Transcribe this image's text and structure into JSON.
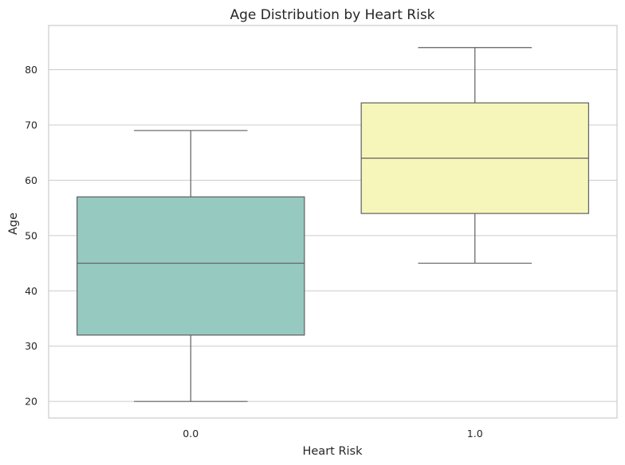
{
  "chart_data": {
    "type": "box",
    "title": "Age Distribution by Heart Risk",
    "xlabel": "Heart Risk",
    "ylabel": "Age",
    "ylim": [
      17,
      88
    ],
    "yticks": [
      20,
      30,
      40,
      50,
      60,
      70,
      80
    ],
    "ytick_labels": [
      "20",
      "30",
      "40",
      "50",
      "60",
      "70",
      "80"
    ],
    "grid": true,
    "categories": [
      "0.0",
      "1.0"
    ],
    "boxes": [
      {
        "category": "0.0",
        "whisker_low": 20,
        "q1": 32,
        "median": 45,
        "q3": 57,
        "whisker_high": 69,
        "color": "#96c9bf"
      },
      {
        "category": "1.0",
        "whisker_low": 45,
        "q1": 54,
        "median": 64,
        "q3": 74,
        "whisker_high": 84,
        "color": "#f7f6ba"
      }
    ]
  }
}
